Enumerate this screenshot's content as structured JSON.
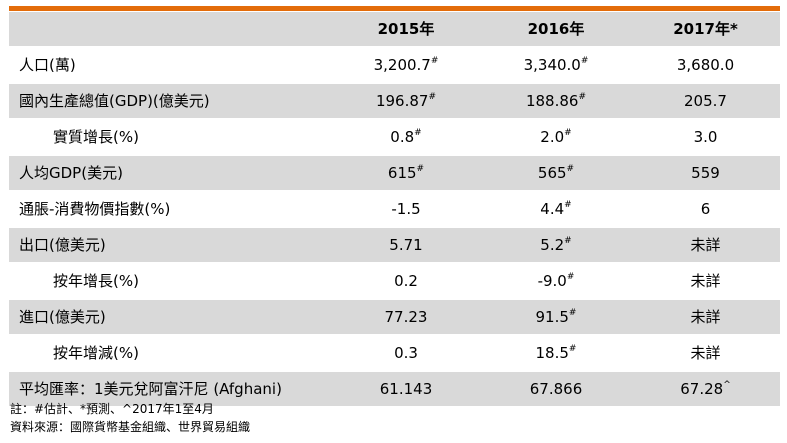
{
  "table": {
    "headers": [
      "",
      "2015年",
      "2016年",
      "2017年*"
    ],
    "rows": [
      {
        "label": "人口(萬)",
        "indent": false,
        "shade": false,
        "cells": [
          {
            "v": "3,200.7",
            "s": "#"
          },
          {
            "v": "3,340.0",
            "s": "#"
          },
          {
            "v": "3,680.0",
            "s": ""
          }
        ]
      },
      {
        "label": "國內生產總值(GDP)(億美元)",
        "indent": false,
        "shade": true,
        "cells": [
          {
            "v": "196.87",
            "s": "#"
          },
          {
            "v": "188.86",
            "s": "#"
          },
          {
            "v": "205.7",
            "s": ""
          }
        ]
      },
      {
        "label": "實質增長(%)",
        "indent": true,
        "shade": false,
        "cells": [
          {
            "v": "0.8",
            "s": "#"
          },
          {
            "v": "2.0",
            "s": "#"
          },
          {
            "v": "3.0",
            "s": ""
          }
        ]
      },
      {
        "label": "人均GDP(美元)",
        "indent": false,
        "shade": true,
        "cells": [
          {
            "v": "615",
            "s": "#"
          },
          {
            "v": "565",
            "s": "#"
          },
          {
            "v": "559",
            "s": ""
          }
        ]
      },
      {
        "label": "通脹-消費物價指數(%)",
        "indent": false,
        "shade": false,
        "cells": [
          {
            "v": "-1.5",
            "s": ""
          },
          {
            "v": "4.4",
            "s": "#"
          },
          {
            "v": "6",
            "s": ""
          }
        ]
      },
      {
        "label": "出口(億美元)",
        "indent": false,
        "shade": true,
        "cells": [
          {
            "v": "5.71",
            "s": ""
          },
          {
            "v": "5.2",
            "s": "#"
          },
          {
            "v": "未詳",
            "s": ""
          }
        ]
      },
      {
        "label": "按年增長(%)",
        "indent": true,
        "shade": false,
        "cells": [
          {
            "v": "0.2",
            "s": ""
          },
          {
            "v": "-9.0",
            "s": "#"
          },
          {
            "v": "未詳",
            "s": ""
          }
        ]
      },
      {
        "label": "進口(億美元)",
        "indent": false,
        "shade": true,
        "cells": [
          {
            "v": "77.23",
            "s": ""
          },
          {
            "v": "91.5",
            "s": "#"
          },
          {
            "v": "未詳",
            "s": ""
          }
        ]
      },
      {
        "label": "按年增減(%)",
        "indent": true,
        "shade": false,
        "cells": [
          {
            "v": "0.3",
            "s": ""
          },
          {
            "v": "18.5",
            "s": "#"
          },
          {
            "v": "未詳",
            "s": ""
          }
        ]
      },
      {
        "label": "平均匯率：1美元兌阿富汗尼 (Afghani)",
        "indent": false,
        "shade": true,
        "cells": [
          {
            "v": "61.143",
            "s": ""
          },
          {
            "v": "67.866",
            "s": ""
          },
          {
            "v": "67.28",
            "s": "^"
          }
        ]
      }
    ]
  },
  "notes": {
    "line1": "註：#估計、*預測、^2017年1至4月",
    "line2": "資料來源：國際貨幣基金組織、世界貿易組織"
  },
  "colors": {
    "accent_bar": "#e36c0a",
    "row_shade": "#d9d9d9"
  }
}
